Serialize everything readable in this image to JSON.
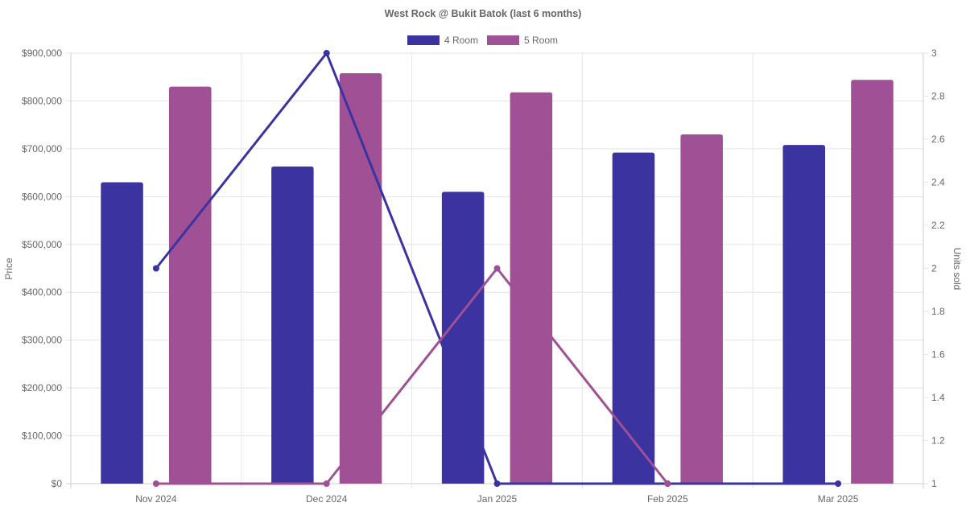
{
  "chart_data": {
    "type": "bar",
    "title": "West Rock @ Bukit Batok (last 6 months)",
    "categories": [
      "Nov 2024",
      "Dec 2024",
      "Jan 2025",
      "Feb 2025",
      "Mar 2025"
    ],
    "ylabel_left": "Price",
    "ylabel_right": "Units sold",
    "ylim_left": [
      0,
      900000
    ],
    "ylim_right": [
      1,
      3
    ],
    "left_ticks": [
      "$0",
      "$100,000",
      "$200,000",
      "$300,000",
      "$400,000",
      "$500,000",
      "$600,000",
      "$700,000",
      "$800,000",
      "$900,000"
    ],
    "right_ticks": [
      "1",
      "1.2",
      "1.4",
      "1.6",
      "1.8",
      "2",
      "2.2",
      "2.4",
      "2.6",
      "2.8",
      "3"
    ],
    "legend_position": "top-center",
    "grid": true,
    "bar_series": [
      {
        "name": "4 Room",
        "color": "#3a33a0",
        "values": [
          630000,
          663000,
          610000,
          692000,
          708000
        ]
      },
      {
        "name": "5 Room",
        "color": "#a05094",
        "values": [
          830000,
          858000,
          818000,
          730000,
          844000
        ]
      }
    ],
    "line_series": [
      {
        "series": "4 Room",
        "color": "#3a33a0",
        "values": [
          2,
          3,
          1,
          1,
          1
        ]
      },
      {
        "series": "5 Room",
        "color": "#a05094",
        "values": [
          1,
          1,
          2,
          1,
          null
        ]
      }
    ]
  }
}
